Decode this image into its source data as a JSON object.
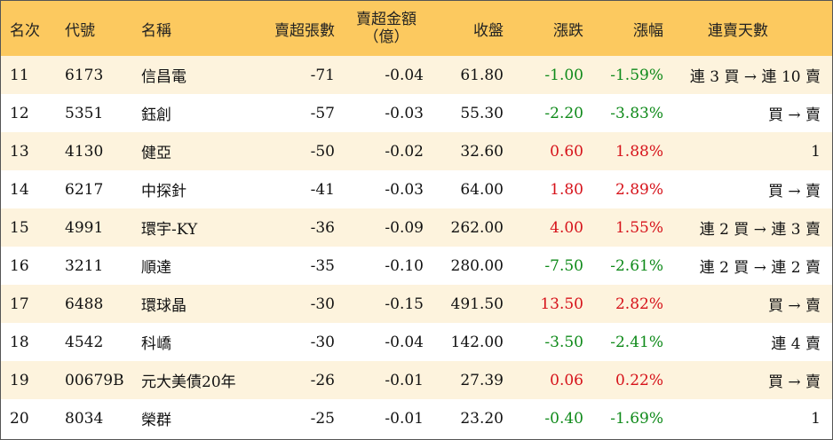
{
  "headers": {
    "rank": "名次",
    "code": "代號",
    "name": "名稱",
    "sell_lots": "賣超張數",
    "sell_amount_line1": "賣超金額",
    "sell_amount_line2": "（億）",
    "close": "收盤",
    "change": "漲跌",
    "pct": "漲幅",
    "streak": "連賣天數"
  },
  "colors": {
    "header_bg": "#fcc95f",
    "odd_row_bg": "#fdf3dd",
    "up": "#d6121a",
    "down": "#0f8a1a",
    "border": "#555555"
  },
  "rows": [
    {
      "rank": "11",
      "code": "6173",
      "name": "信昌電",
      "lots": "-71",
      "amount": "-0.04",
      "close": "61.80",
      "change": "-1.00",
      "pct": "-1.59%",
      "dir": "down",
      "streak": "連 3 買 → 連 10 賣"
    },
    {
      "rank": "12",
      "code": "5351",
      "name": "鈺創",
      "lots": "-57",
      "amount": "-0.03",
      "close": "55.30",
      "change": "-2.20",
      "pct": "-3.83%",
      "dir": "down",
      "streak": "買 → 賣"
    },
    {
      "rank": "13",
      "code": "4130",
      "name": "健亞",
      "lots": "-50",
      "amount": "-0.02",
      "close": "32.60",
      "change": "0.60",
      "pct": "1.88%",
      "dir": "up",
      "streak": "1"
    },
    {
      "rank": "14",
      "code": "6217",
      "name": "中探針",
      "lots": "-41",
      "amount": "-0.03",
      "close": "64.00",
      "change": "1.80",
      "pct": "2.89%",
      "dir": "up",
      "streak": "買 → 賣"
    },
    {
      "rank": "15",
      "code": "4991",
      "name": "環宇-KY",
      "lots": "-36",
      "amount": "-0.09",
      "close": "262.00",
      "change": "4.00",
      "pct": "1.55%",
      "dir": "up",
      "streak": "連 2 買 → 連 3 賣"
    },
    {
      "rank": "16",
      "code": "3211",
      "name": "順達",
      "lots": "-35",
      "amount": "-0.10",
      "close": "280.00",
      "change": "-7.50",
      "pct": "-2.61%",
      "dir": "down",
      "streak": "連 2 買 → 連 2 賣"
    },
    {
      "rank": "17",
      "code": "6488",
      "name": "環球晶",
      "lots": "-30",
      "amount": "-0.15",
      "close": "491.50",
      "change": "13.50",
      "pct": "2.82%",
      "dir": "up",
      "streak": "買 → 賣"
    },
    {
      "rank": "18",
      "code": "4542",
      "name": "科嶠",
      "lots": "-30",
      "amount": "-0.04",
      "close": "142.00",
      "change": "-3.50",
      "pct": "-2.41%",
      "dir": "down",
      "streak": "連 4 賣"
    },
    {
      "rank": "19",
      "code": "00679B",
      "name": "元大美債20年",
      "lots": "-26",
      "amount": "-0.01",
      "close": "27.39",
      "change": "0.06",
      "pct": "0.22%",
      "dir": "up",
      "streak": "買 → 賣"
    },
    {
      "rank": "20",
      "code": "8034",
      "name": "榮群",
      "lots": "-25",
      "amount": "-0.01",
      "close": "23.20",
      "change": "-0.40",
      "pct": "-1.69%",
      "dir": "down",
      "streak": "1"
    }
  ]
}
